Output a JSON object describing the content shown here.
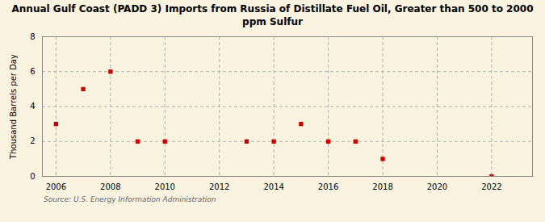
{
  "chart_data": {
    "type": "scatter",
    "title": "Annual Gulf Coast (PADD 3) Imports from Russia of Distillate Fuel Oil, Greater than 500 to 2000\nppm Sulfur",
    "ylabel": "Thousand Barrels per Day",
    "source": "Source: U.S. Energy Information Administration",
    "x": [
      2006,
      2007,
      2008,
      2009,
      2010,
      2013,
      2014,
      2015,
      2016,
      2017,
      2018,
      2022
    ],
    "values": [
      3,
      5,
      6,
      2,
      2,
      2,
      2,
      3,
      2,
      2,
      1,
      0
    ],
    "color": "#cc0000",
    "marker": "square",
    "xlim": [
      2005.5,
      2023.5
    ],
    "ylim": [
      0,
      8
    ],
    "xticks": [
      2006,
      2008,
      2010,
      2012,
      2014,
      2016,
      2018,
      2020,
      2022
    ],
    "yticks": [
      0,
      2,
      4,
      6,
      8
    ],
    "grid": true
  }
}
